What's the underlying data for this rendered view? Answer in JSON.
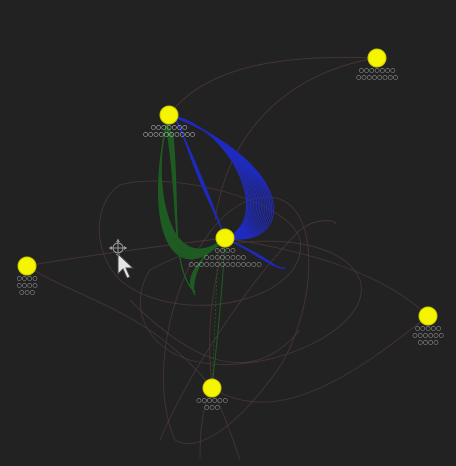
{
  "colors": {
    "background": "#222222",
    "node_fill": "#f5f500",
    "node_stroke": "#c8c800",
    "edge_default": "#4a3636",
    "edge_green": "#1f5c23",
    "edge_blue": "#1f2bbf",
    "label": "#c9c9c9",
    "label_bright": "#eeeeee"
  },
  "graph": {
    "nodes": [
      {
        "id": "hub",
        "label_lines": [
          "○○○○○○○",
          "○○○○○○○○○○"
        ],
        "bright": true
      },
      {
        "id": "center",
        "label_lines": [
          "○○○○",
          "○○○○○○○○",
          "○○○○○○○○○○○○○○"
        ],
        "bright": false
      },
      {
        "id": "top-right",
        "label_lines": [
          "○○○○○○○",
          "○○○○○○○○"
        ],
        "bright": false
      },
      {
        "id": "left",
        "label_lines": [
          "○○○○",
          "○○○○",
          "○○○"
        ],
        "bright": false
      },
      {
        "id": "right",
        "label_lines": [
          "○○○○○",
          "○○○○○○",
          "○○○○"
        ],
        "bright": false
      },
      {
        "id": "bottom",
        "label_lines": [
          "○○○○○○",
          "○○○"
        ],
        "bright": false
      }
    ]
  },
  "cursor": {
    "icon": "pointer-arrow-icon",
    "badge_icon": "move-badge-icon"
  }
}
